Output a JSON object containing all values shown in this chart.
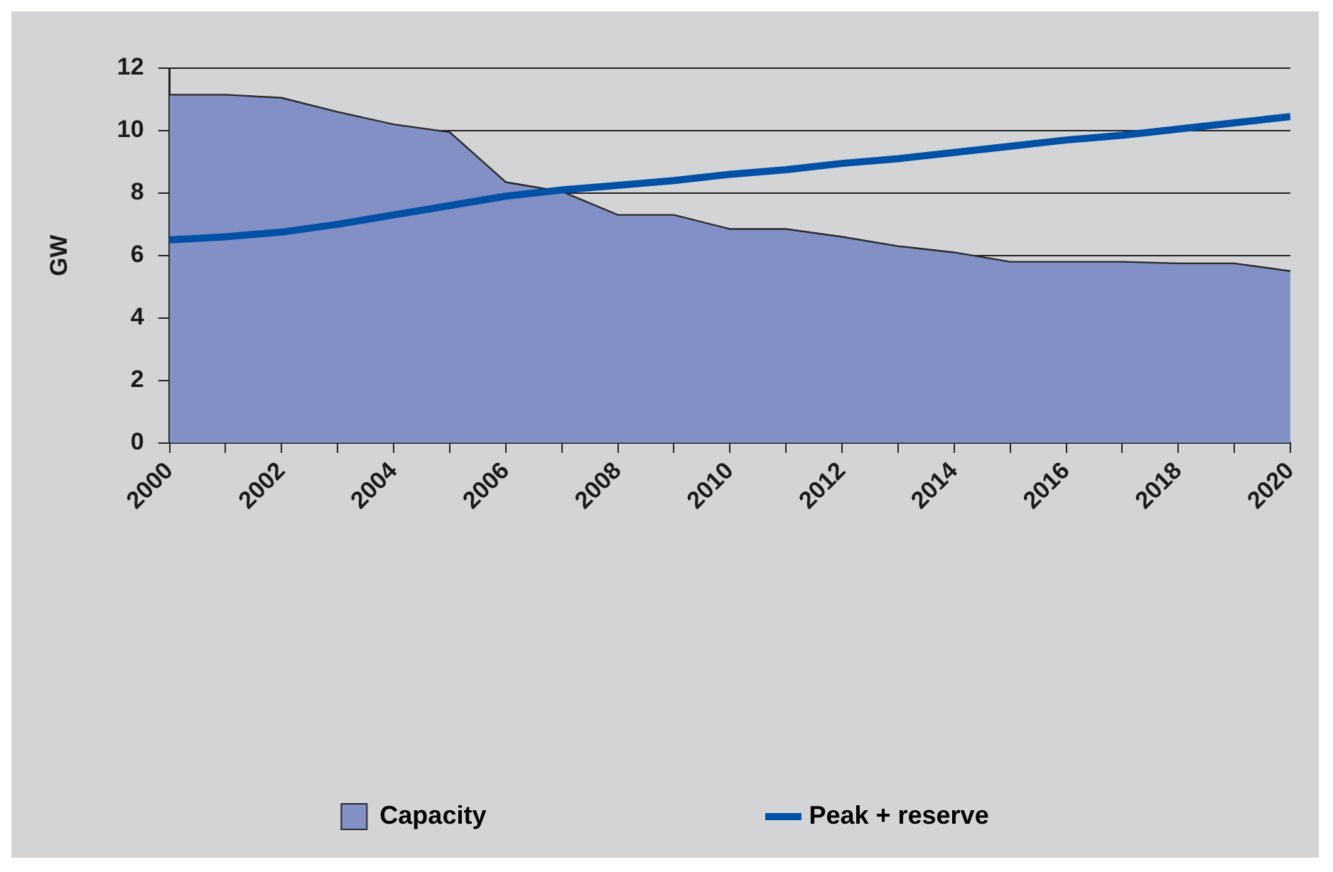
{
  "chart_data": {
    "type": "area",
    "ylabel": "GW",
    "x": [
      2000,
      2001,
      2002,
      2003,
      2004,
      2005,
      2006,
      2007,
      2008,
      2009,
      2010,
      2011,
      2012,
      2013,
      2014,
      2015,
      2016,
      2017,
      2018,
      2019,
      2020
    ],
    "series": [
      {
        "name": "Capacity",
        "type": "area",
        "color": "#8290c6",
        "values": [
          11.15,
          11.15,
          11.05,
          10.6,
          10.2,
          9.95,
          8.35,
          8.05,
          7.3,
          7.3,
          6.85,
          6.85,
          6.6,
          6.3,
          6.1,
          5.8,
          5.8,
          5.8,
          5.75,
          5.75,
          5.5
        ]
      },
      {
        "name": "Peak + reserve",
        "type": "line",
        "color": "#0051a5",
        "values": [
          6.5,
          6.6,
          6.75,
          7.0,
          7.3,
          7.6,
          7.9,
          8.1,
          8.25,
          8.4,
          8.6,
          8.75,
          8.95,
          9.1,
          9.3,
          9.5,
          9.7,
          9.85,
          10.05,
          10.25,
          10.45
        ]
      }
    ],
    "xlim": [
      2000,
      2020
    ],
    "xticks": [
      2000,
      {
        "value": 2001,
        "label": null
      },
      2002,
      {
        "value": 2003,
        "label": null
      },
      2004,
      {
        "value": 2005,
        "label": null
      },
      2006,
      {
        "value": 2007,
        "label": null
      },
      2008,
      {
        "value": 2009,
        "label": null
      },
      2010,
      {
        "value": 2011,
        "label": null
      },
      2012,
      {
        "value": 2013,
        "label": null
      },
      2014,
      {
        "value": 2015,
        "label": null
      },
      2016,
      {
        "value": 2017,
        "label": null
      },
      2018,
      {
        "value": 2019,
        "label": null
      },
      2020
    ],
    "ylim": [
      0,
      12
    ],
    "yticks": [
      0,
      2,
      4,
      6,
      8,
      10,
      12
    ],
    "grid": "y",
    "legend": "bottom",
    "marker": "none",
    "line_style": "solid"
  }
}
